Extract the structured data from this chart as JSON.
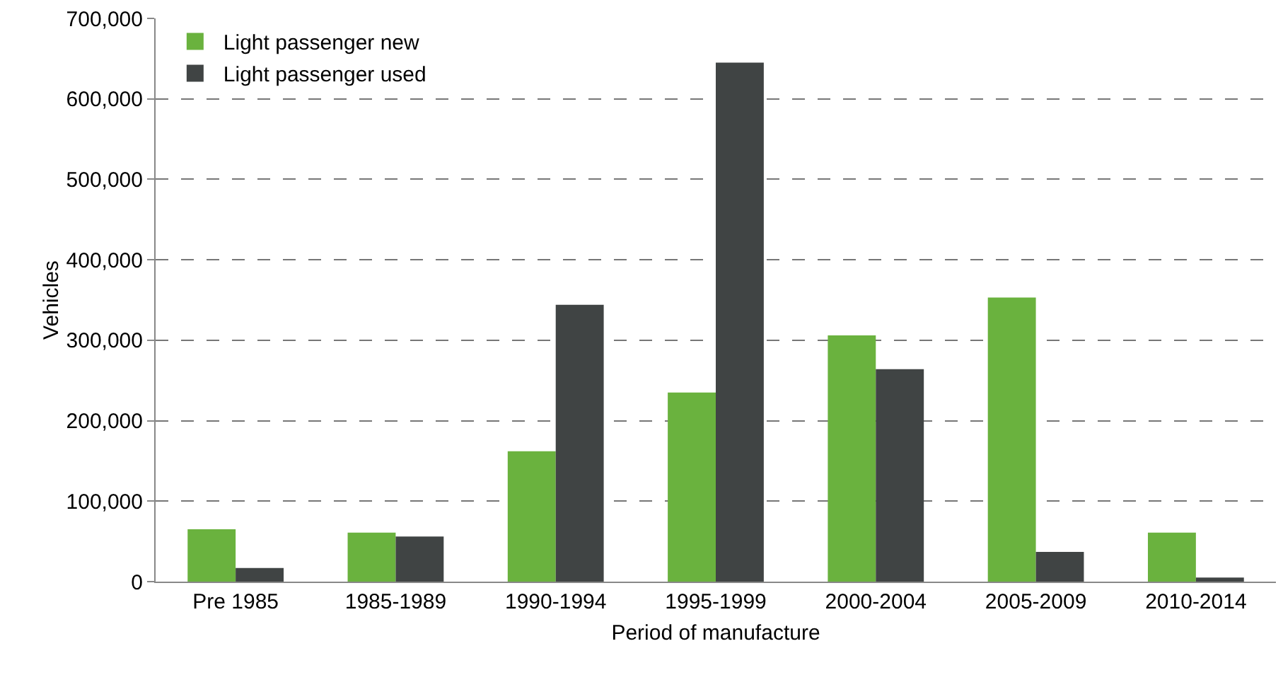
{
  "chart_data": {
    "type": "bar",
    "xlabel": "Period of manufacture",
    "ylabel": "Vehicles",
    "categories": [
      "Pre 1985",
      "1985-1989",
      "1990-1994",
      "1995-1999",
      "2000-2004",
      "2005-2009",
      "2010-2014"
    ],
    "series": [
      {
        "name": "Light passenger new",
        "color": "#6ab23e",
        "values": [
          65000,
          61000,
          162000,
          235000,
          306000,
          353000,
          61000
        ]
      },
      {
        "name": "Light passenger used",
        "color": "#404444",
        "values": [
          17000,
          56000,
          344000,
          645000,
          264000,
          37000,
          5000
        ]
      }
    ],
    "ylim": [
      0,
      700000
    ],
    "yticks": [
      {
        "value": 0,
        "label": "0"
      },
      {
        "value": 100000,
        "label": "100,000"
      },
      {
        "value": 200000,
        "label": "200,000"
      },
      {
        "value": 300000,
        "label": "300,000"
      },
      {
        "value": 400000,
        "label": "400,000"
      },
      {
        "value": 500000,
        "label": "500,000"
      },
      {
        "value": 600000,
        "label": "600,000"
      },
      {
        "value": 700000,
        "label": "700,000"
      }
    ],
    "grid": "y",
    "legend": "top left"
  }
}
